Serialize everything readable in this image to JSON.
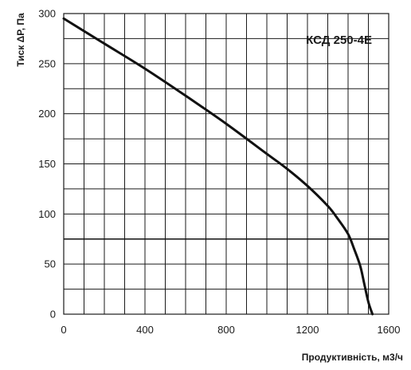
{
  "chart_data": {
    "type": "line",
    "title": "КСД 250-4Е",
    "xlabel": "Продуктивність, м3/ч",
    "ylabel": "Тиск ΔP, Па",
    "xlim": [
      0,
      1600
    ],
    "ylim": [
      0,
      300
    ],
    "x_ticks": [
      0,
      400,
      800,
      1200,
      1600
    ],
    "y_ticks": [
      0,
      50,
      100,
      150,
      200,
      250,
      300
    ],
    "x_tick_labels": [
      "0",
      "400",
      "800",
      "1200",
      "1600"
    ],
    "y_tick_labels": [
      "0",
      "50",
      "100",
      "150",
      "200",
      "250",
      "300"
    ],
    "grid": true,
    "series": [
      {
        "x": [
          0,
          200,
          400,
          600,
          800,
          1000,
          1100,
          1200,
          1300,
          1350,
          1400,
          1430,
          1460,
          1480,
          1500,
          1520
        ],
        "values": [
          295,
          270,
          245,
          218,
          190,
          160,
          145,
          128,
          108,
          95,
          80,
          65,
          48,
          30,
          12,
          0
        ]
      }
    ],
    "reference_line": {
      "orientation": "horizontal",
      "y": 75
    }
  }
}
